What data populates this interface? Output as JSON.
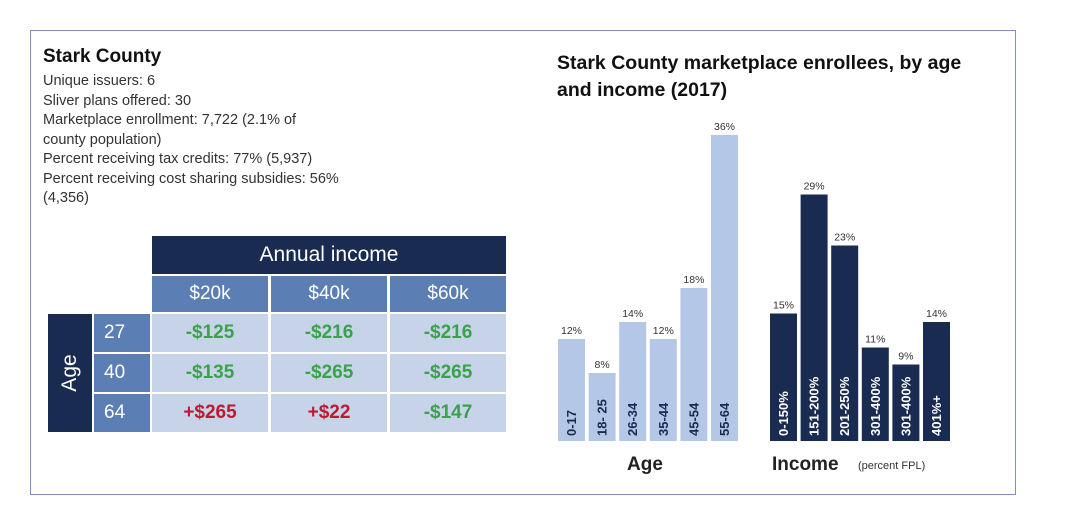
{
  "info": {
    "title": "Stark County",
    "lines": [
      "Unique issuers: 6",
      "Sliver plans offered: 30",
      "Marketplace enrollment: 7,722 (2.1% of",
      "county population)",
      "Percent receiving tax credits: 77% (5,937)",
      "Percent receiving cost sharing subsidies: 56%",
      "(4,356)"
    ]
  },
  "table": {
    "header": "Annual income",
    "columns": [
      "$20k",
      "$40k",
      "$60k"
    ],
    "row_header": "Age",
    "rows": [
      {
        "age": "27",
        "values": [
          "-$125",
          "-$216",
          "-$216"
        ]
      },
      {
        "age": "40",
        "values": [
          "-$135",
          "-$265",
          "-$265"
        ]
      },
      {
        "age": "64",
        "values": [
          "+$265",
          "+$22",
          "-$147"
        ]
      }
    ],
    "colors": {
      "negative": "#3aa24a",
      "positive": "#c0182e",
      "header_dark": "#1a2b52",
      "header_mid": "#5b7fb5",
      "cell_bg": "#c6d3e8"
    }
  },
  "chart_data": [
    {
      "type": "bar",
      "title": "Stark County marketplace enrollees, by age and income (2017)",
      "xlabel": "Age",
      "categories": [
        "0-17",
        "18- 25",
        "26-34",
        "35-44",
        "45-54",
        "55-64"
      ],
      "values": [
        12,
        8,
        14,
        12,
        18,
        36
      ],
      "value_labels": [
        "12%",
        "8%",
        "14%",
        "12%",
        "18%",
        "36%"
      ],
      "color": "#b4c7e7",
      "ylim": [
        0,
        36
      ]
    },
    {
      "type": "bar",
      "xlabel": "Income",
      "xlabel_note": "(percent FPL)",
      "categories": [
        "0-150%",
        "151-200%",
        "201-250%",
        "301-400%",
        "301-400%",
        "401%+"
      ],
      "values": [
        15,
        29,
        23,
        11,
        9,
        14
      ],
      "value_labels": [
        "15%",
        "29%",
        "23%",
        "11%",
        "9%",
        "14%"
      ],
      "color": "#1a2b52",
      "ylim": [
        0,
        36
      ]
    }
  ]
}
